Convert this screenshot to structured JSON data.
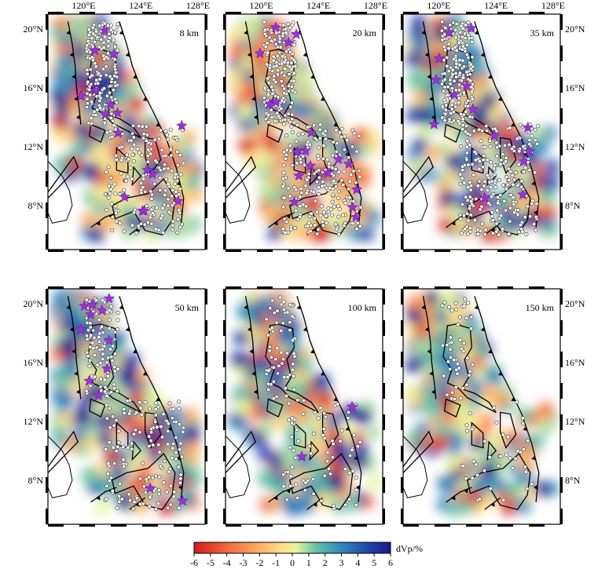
{
  "panels": [
    {
      "depth_label": "8 km"
    },
    {
      "depth_label": "20 km"
    },
    {
      "depth_label": "35 km"
    },
    {
      "depth_label": "50 km"
    },
    {
      "depth_label": "100 km"
    },
    {
      "depth_label": "150 km"
    }
  ],
  "axes": {
    "lon_ticks": [
      "120°E",
      "124°E",
      "128°E"
    ],
    "lat_ticks": [
      "20°N",
      "16°N",
      "12°N",
      "8°N"
    ],
    "lon_range": [
      117.5,
      128.5
    ],
    "lat_range": [
      5,
      21
    ]
  },
  "colorbar": {
    "ticks": [
      "-6",
      "-5",
      "-4",
      "-3",
      "-2",
      "-1",
      "0",
      "1",
      "2",
      "3",
      "4",
      "5",
      "6"
    ],
    "title": "dVp/%",
    "range": [
      -6,
      6
    ],
    "colors": [
      "#d7191c",
      "#f46d43",
      "#fdae61",
      "#fee08b",
      "#ffffbf",
      "#abdda4",
      "#66c2a5",
      "#3288bd",
      "#1c3fa8",
      "#1a1a8c"
    ]
  },
  "legend_symbols": {
    "earthquake": "white-circle",
    "volcano": "purple-star",
    "colors": {
      "star": "#9b30d9",
      "coast": "#000000"
    }
  }
}
